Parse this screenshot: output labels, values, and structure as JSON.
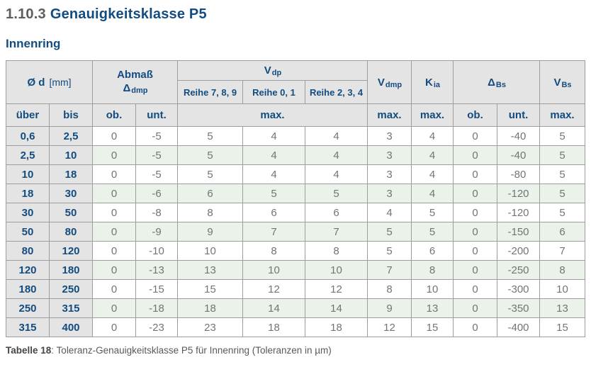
{
  "heading": {
    "number": "1.10.3",
    "title": "Genauigkeitsklasse P5"
  },
  "section": {
    "title": "Innenring"
  },
  "table": {
    "head": {
      "d_label": "Ø d",
      "d_unit": "[mm]",
      "abmass_line1": "Abmaß",
      "abmass_sym": "Δ",
      "abmass_sub": "dmp",
      "vdp_sym": "V",
      "vdp_sub": "dp",
      "reihe_789": "Reihe 7, 8, 9",
      "reihe_01": "Reihe 0, 1",
      "reihe_234": "Reihe 2, 3, 4",
      "vdmp_sym": "V",
      "vdmp_sub": "dmp",
      "kia_sym": "K",
      "kia_sub": "ia",
      "dbs_sym": "Δ",
      "dbs_sub": "Bs",
      "vbs_sym": "V",
      "vbs_sub": "Bs",
      "sub_ueber": "über",
      "sub_bis": "bis",
      "sub_ob": "ob.",
      "sub_unt": "unt.",
      "sub_max_vdp": "max.",
      "sub_max_vdmp": "max.",
      "sub_max_kia": "max.",
      "sub_ob_bs": "ob.",
      "sub_unt_bs": "unt.",
      "sub_max_vbs": "max."
    },
    "rows": [
      [
        "0,6",
        "2,5",
        "0",
        "-5",
        "5",
        "4",
        "4",
        "3",
        "4",
        "0",
        "-40",
        "5"
      ],
      [
        "2,5",
        "10",
        "0",
        "-5",
        "5",
        "4",
        "4",
        "3",
        "4",
        "0",
        "-40",
        "5"
      ],
      [
        "10",
        "18",
        "0",
        "-5",
        "5",
        "4",
        "4",
        "3",
        "4",
        "0",
        "-80",
        "5"
      ],
      [
        "18",
        "30",
        "0",
        "-6",
        "6",
        "5",
        "5",
        "3",
        "4",
        "0",
        "-120",
        "5"
      ],
      [
        "30",
        "50",
        "0",
        "-8",
        "8",
        "6",
        "6",
        "4",
        "5",
        "0",
        "-120",
        "5"
      ],
      [
        "50",
        "80",
        "0",
        "-9",
        "9",
        "7",
        "7",
        "5",
        "5",
        "0",
        "-150",
        "6"
      ],
      [
        "80",
        "120",
        "0",
        "-10",
        "10",
        "8",
        "8",
        "5",
        "6",
        "0",
        "-200",
        "7"
      ],
      [
        "120",
        "180",
        "0",
        "-13",
        "13",
        "10",
        "10",
        "7",
        "8",
        "0",
        "-250",
        "8"
      ],
      [
        "180",
        "250",
        "0",
        "-15",
        "15",
        "12",
        "12",
        "8",
        "10",
        "0",
        "-300",
        "10"
      ],
      [
        "250",
        "315",
        "0",
        "-18",
        "18",
        "14",
        "14",
        "9",
        "13",
        "0",
        "-350",
        "13"
      ],
      [
        "315",
        "400",
        "0",
        "-23",
        "23",
        "18",
        "18",
        "12",
        "15",
        "0",
        "-400",
        "15"
      ]
    ]
  },
  "caption": {
    "label": "Tabelle 18",
    "text": ": Toleranz-Genauigkeitsklasse P5 für Innenring (Toleranzen in µm)"
  },
  "colors": {
    "accent_blue": "#134c80",
    "heading_number_gray": "#5d5e60",
    "header_bg_gray": "#e4e4e4",
    "alt_row_green": "#eaf2e9",
    "value_text_gray": "#737476",
    "border_gray": "#9d9d9d"
  }
}
